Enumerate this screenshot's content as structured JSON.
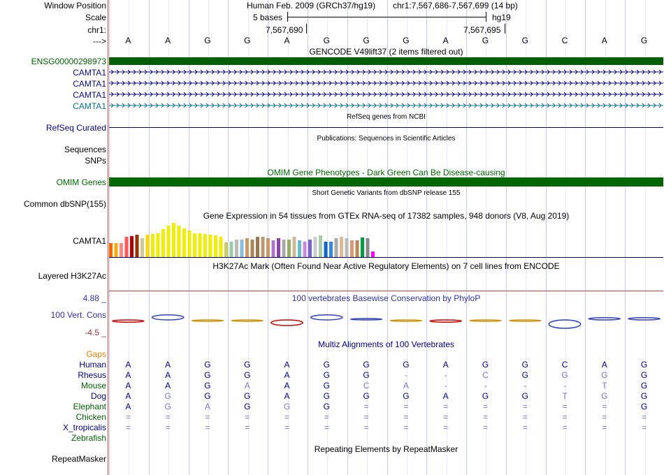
{
  "header": {
    "window_position_label": "Window Position",
    "scale_label": "Scale",
    "chr_label": "chr1:",
    "arrow_label": "--->",
    "assembly_text": "Human Feb. 2009 (GRCh37/hg19)",
    "position_text": "chr1:7,567,686-7,567,699 (14 bp)",
    "scale_text": "5 bases",
    "db_text": "hg19",
    "coord_1": "7,567,690",
    "coord_2": "7,567,695"
  },
  "reference_bases": [
    "A",
    "A",
    "G",
    "G",
    "A",
    "G",
    "G",
    "G",
    "A",
    "G",
    "G",
    "C",
    "A",
    "G"
  ],
  "tracks": {
    "gencode_title": "GENCODE V49lift37 (2 items filtered out)",
    "ensg_label": "ENSG00000298973",
    "camta_labels": [
      "CAMTA1",
      "CAMTA1",
      "CAMTA1",
      "CAMTA1"
    ],
    "refseq_title": "RefSeq genes from NCBI",
    "refseq_label": "RefSeq Curated",
    "pubs_title": "Publications: Sequences in Scientific Articles",
    "sequences_label": "Sequences",
    "snps_label": "SNPs",
    "omim_title": "OMIM Gene Phenotypes - Dark Green Can Be Disease-causing",
    "omim_label": "OMIM Genes",
    "dbsnp_title": "Short Genetic Variants from dbSNP release 155",
    "dbsnp_label": "Common dbSNP(155)",
    "gtex_title": "Gene Expression in 54 tissues from GTEx RNA-seq of 17382 samples, 948 donors (V8, Aug 2019)",
    "gtex_label": "CAMTA1",
    "h3k_title": "H3K27Ac Mark (Often Found Near Active Regulatory Elements) on 7 cell lines from ENCODE",
    "h3k_label": "Layered H3K27Ac",
    "phylop_title": "100 vertebrates Basewise Conservation by PhyloP",
    "phylop_label": "100 Vert. Cons",
    "phylop_max": "4.88 _",
    "phylop_min": "-4.5 _",
    "multiz_title": "Multiz Alignments of 100 Vertebrates",
    "gaps_label": "Gaps",
    "repeat_title": "Repeating Elements by RepeatMasker",
    "repeat_label": "RepeatMasker"
  },
  "colors": {
    "gencode_green": "#005e00",
    "camta_navy": "#0c0c78",
    "camta_teal": "#0c6e8c",
    "omim_green": "#006600",
    "label_navy": "#000080",
    "gaps_orange": "#e08000",
    "phylop_blue": "#3030a0",
    "phylop_red": "#c00000"
  },
  "gtex_bars": [
    {
      "v": 0.38,
      "c": "#ff6600"
    },
    {
      "v": 0.38,
      "c": "#ffaa00"
    },
    {
      "v": 0.38,
      "c": "#ff8888"
    },
    {
      "v": 0.55,
      "c": "#ff5555"
    },
    {
      "v": 0.57,
      "c": "#aa0000"
    },
    {
      "v": 0.6,
      "c": "#993300"
    },
    {
      "v": 0.5,
      "c": "#cccc99"
    },
    {
      "v": 0.6,
      "c": "#ffd700"
    },
    {
      "v": 0.62,
      "c": "#eeee00"
    },
    {
      "v": 0.65,
      "c": "#eeee00"
    },
    {
      "v": 0.75,
      "c": "#eeee00"
    },
    {
      "v": 0.85,
      "c": "#eeee00"
    },
    {
      "v": 0.92,
      "c": "#eeee00"
    },
    {
      "v": 0.85,
      "c": "#eeee00"
    },
    {
      "v": 0.78,
      "c": "#eeee00"
    },
    {
      "v": 0.72,
      "c": "#eeee00"
    },
    {
      "v": 0.65,
      "c": "#eeee00"
    },
    {
      "v": 0.65,
      "c": "#eeee00"
    },
    {
      "v": 0.62,
      "c": "#eeee00"
    },
    {
      "v": 0.6,
      "c": "#eeee00"
    },
    {
      "v": 0.58,
      "c": "#eeee00"
    },
    {
      "v": 0.55,
      "c": "#eeee00"
    },
    {
      "v": 0.4,
      "c": "#cccc66"
    },
    {
      "v": 0.42,
      "c": "#99ccaa"
    },
    {
      "v": 0.48,
      "c": "#bbbbbb"
    },
    {
      "v": 0.48,
      "c": "#88bbdd"
    },
    {
      "v": 0.5,
      "c": "#cc9966"
    },
    {
      "v": 0.48,
      "c": "#aa8855"
    },
    {
      "v": 0.55,
      "c": "#997755"
    },
    {
      "v": 0.55,
      "c": "#bb9977"
    },
    {
      "v": 0.5,
      "c": "#cc9966"
    },
    {
      "v": 0.45,
      "c": "#aa77cc"
    },
    {
      "v": 0.5,
      "c": "#8844aa"
    },
    {
      "v": 0.48,
      "c": "#aaaaaa"
    },
    {
      "v": 0.48,
      "c": "#99aa66"
    },
    {
      "v": 0.55,
      "c": "#ccbb99"
    },
    {
      "v": 0.45,
      "c": "#66bbcc"
    },
    {
      "v": 0.42,
      "c": "#cc88dd"
    },
    {
      "v": 0.48,
      "c": "#7766cc"
    },
    {
      "v": 0.55,
      "c": "#cccccc"
    },
    {
      "v": 0.58,
      "c": "#aaccaa"
    },
    {
      "v": 0.42,
      "c": "#1166cc"
    },
    {
      "v": 0.42,
      "c": "#3388dd"
    },
    {
      "v": 0.5,
      "c": "#aaaaaa"
    },
    {
      "v": 0.55,
      "c": "#ddbb99"
    },
    {
      "v": 0.5,
      "c": "#bbbbbb"
    },
    {
      "v": 0.45,
      "c": "#dd9977"
    },
    {
      "v": 0.45,
      "c": "#bb8855"
    },
    {
      "v": 0.52,
      "c": "#009944"
    },
    {
      "v": 0.5,
      "c": "#888888"
    },
    {
      "v": 0.15,
      "c": "#ff00ff"
    }
  ],
  "phylop_scores": [
    -0.4,
    0.9,
    -0.1,
    -0.1,
    -1.0,
    0.9,
    0.2,
    -0.1,
    -0.4,
    -0.1,
    -0.1,
    -1.5,
    0.4,
    0.4
  ],
  "multiz": [
    {
      "species": "Human",
      "color": "#000080",
      "bases": [
        {
          "b": "A",
          "c": "#000080"
        },
        {
          "b": "A",
          "c": "#000080"
        },
        {
          "b": "G",
          "c": "#000080"
        },
        {
          "b": "G",
          "c": "#000080"
        },
        {
          "b": "A",
          "c": "#000080"
        },
        {
          "b": "G",
          "c": "#000080"
        },
        {
          "b": "G",
          "c": "#000080"
        },
        {
          "b": "G",
          "c": "#000080"
        },
        {
          "b": "A",
          "c": "#000080"
        },
        {
          "b": "G",
          "c": "#000080"
        },
        {
          "b": "G",
          "c": "#000080"
        },
        {
          "b": "C",
          "c": "#000080"
        },
        {
          "b": "A",
          "c": "#000080"
        },
        {
          "b": "G",
          "c": "#000080"
        }
      ]
    },
    {
      "species": "Rhesus",
      "color": "#000080",
      "bases": [
        {
          "b": "A",
          "c": "#000080"
        },
        {
          "b": "A",
          "c": "#000080"
        },
        {
          "b": "G",
          "c": "#000080"
        },
        {
          "b": "G",
          "c": "#000080"
        },
        {
          "b": "A",
          "c": "#000080"
        },
        {
          "b": "G",
          "c": "#000080"
        },
        {
          "b": "G",
          "c": "#000080"
        },
        {
          "b": "-",
          "c": "#7878c8"
        },
        {
          "b": "-",
          "c": "#7878c8"
        },
        {
          "b": "C",
          "c": "#7878c8"
        },
        {
          "b": "G",
          "c": "#000080"
        },
        {
          "b": "G",
          "c": "#7878c8"
        },
        {
          "b": "G",
          "c": "#7878c8"
        },
        {
          "b": "G",
          "c": "#000080"
        }
      ]
    },
    {
      "species": "Mouse",
      "color": "#006000",
      "bases": [
        {
          "b": "A",
          "c": "#000080"
        },
        {
          "b": "A",
          "c": "#000080"
        },
        {
          "b": "G",
          "c": "#000080"
        },
        {
          "b": "A",
          "c": "#7878c8"
        },
        {
          "b": "A",
          "c": "#000080"
        },
        {
          "b": "G",
          "c": "#000080"
        },
        {
          "b": "C",
          "c": "#7878c8"
        },
        {
          "b": "A",
          "c": "#7878c8"
        },
        {
          "b": "-",
          "c": "#7878c8"
        },
        {
          "b": "-",
          "c": "#7878c8"
        },
        {
          "b": "-",
          "c": "#7878c8"
        },
        {
          "b": "-",
          "c": "#7878c8"
        },
        {
          "b": "T",
          "c": "#7878c8"
        },
        {
          "b": "G",
          "c": "#000080"
        }
      ]
    },
    {
      "species": "Dog",
      "color": "#000080",
      "bases": [
        {
          "b": "A",
          "c": "#000080"
        },
        {
          "b": "G",
          "c": "#7878c8"
        },
        {
          "b": "G",
          "c": "#000080"
        },
        {
          "b": "G",
          "c": "#000080"
        },
        {
          "b": "A",
          "c": "#000080"
        },
        {
          "b": "G",
          "c": "#000080"
        },
        {
          "b": "G",
          "c": "#000080"
        },
        {
          "b": "G",
          "c": "#000080"
        },
        {
          "b": "A",
          "c": "#000080"
        },
        {
          "b": "G",
          "c": "#000080"
        },
        {
          "b": "G",
          "c": "#000080"
        },
        {
          "b": "T",
          "c": "#7878c8"
        },
        {
          "b": "G",
          "c": "#7878c8"
        },
        {
          "b": "G",
          "c": "#000080"
        }
      ]
    },
    {
      "species": "Elephant",
      "color": "#006000",
      "bases": [
        {
          "b": "A",
          "c": "#000080"
        },
        {
          "b": "G",
          "c": "#7878c8"
        },
        {
          "b": "A",
          "c": "#7878c8"
        },
        {
          "b": "G",
          "c": "#000080"
        },
        {
          "b": "G",
          "c": "#7878c8"
        },
        {
          "b": "G",
          "c": "#000080"
        },
        {
          "b": "=",
          "c": "#7878c8"
        },
        {
          "b": "=",
          "c": "#7878c8"
        },
        {
          "b": "=",
          "c": "#7878c8"
        },
        {
          "b": "=",
          "c": "#7878c8"
        },
        {
          "b": "=",
          "c": "#7878c8"
        },
        {
          "b": "=",
          "c": "#7878c8"
        },
        {
          "b": "=",
          "c": "#7878c8"
        },
        {
          "b": "G",
          "c": "#000080"
        }
      ]
    },
    {
      "species": "Chicken",
      "color": "#006000",
      "bases": [
        {
          "b": "=",
          "c": "#7878c8"
        },
        {
          "b": "=",
          "c": "#7878c8"
        },
        {
          "b": "=",
          "c": "#7878c8"
        },
        {
          "b": "=",
          "c": "#7878c8"
        },
        {
          "b": "=",
          "c": "#7878c8"
        },
        {
          "b": "=",
          "c": "#7878c8"
        },
        {
          "b": "=",
          "c": "#7878c8"
        },
        {
          "b": "=",
          "c": "#7878c8"
        },
        {
          "b": "=",
          "c": "#7878c8"
        },
        {
          "b": "=",
          "c": "#7878c8"
        },
        {
          "b": "=",
          "c": "#7878c8"
        },
        {
          "b": "=",
          "c": "#7878c8"
        },
        {
          "b": "=",
          "c": "#7878c8"
        },
        {
          "b": "=",
          "c": "#7878c8"
        }
      ]
    },
    {
      "species": "X_tropicalis",
      "color": "#000080",
      "bases": [
        {
          "b": "=",
          "c": "#7878c8"
        },
        {
          "b": "=",
          "c": "#7878c8"
        },
        {
          "b": "=",
          "c": "#7878c8"
        },
        {
          "b": "=",
          "c": "#7878c8"
        },
        {
          "b": "=",
          "c": "#7878c8"
        },
        {
          "b": "=",
          "c": "#7878c8"
        },
        {
          "b": "=",
          "c": "#7878c8"
        },
        {
          "b": "=",
          "c": "#7878c8"
        },
        {
          "b": "=",
          "c": "#7878c8"
        },
        {
          "b": "=",
          "c": "#7878c8"
        },
        {
          "b": "=",
          "c": "#7878c8"
        },
        {
          "b": "=",
          "c": "#7878c8"
        },
        {
          "b": "=",
          "c": "#7878c8"
        },
        {
          "b": "=",
          "c": "#7878c8"
        }
      ]
    },
    {
      "species": "Zebrafish",
      "color": "#006000",
      "bases": []
    }
  ]
}
